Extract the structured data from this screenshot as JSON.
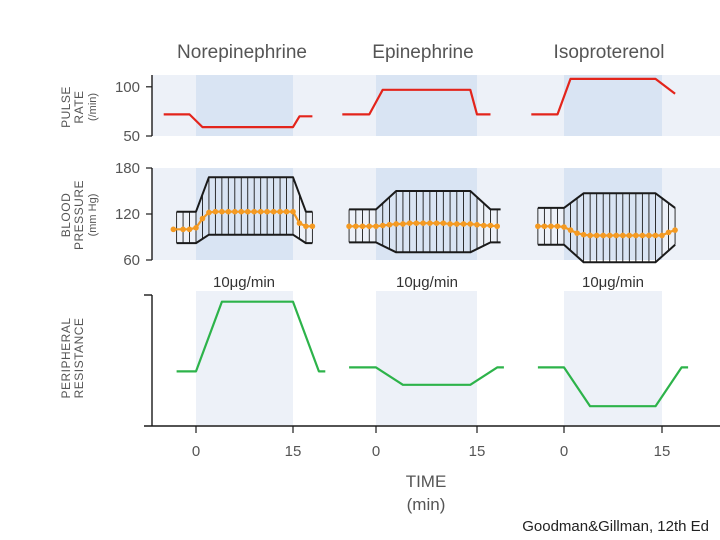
{
  "chart_data": {
    "type": "line",
    "columns": [
      {
        "title": "Norepinephrine",
        "dose": "10μg/min"
      },
      {
        "title": "Epinephrine",
        "dose": "10μg/min"
      },
      {
        "title": "Isoproterenol",
        "dose": "10μg/min"
      }
    ],
    "panels": {
      "pulse": {
        "ylabel": [
          "PULSE",
          "RATE"
        ],
        "yunits": "(/min)",
        "ticks": [
          {
            "v": 100,
            "label": "100"
          },
          {
            "v": 50,
            "label": "50"
          }
        ],
        "ylim": [
          50,
          112
        ],
        "series": [
          [
            [
              -5,
              72
            ],
            [
              -1,
              72
            ],
            [
              1,
              59
            ],
            [
              15,
              59
            ],
            [
              16,
              70
            ],
            [
              18,
              70
            ]
          ],
          [
            [
              -5,
              72
            ],
            [
              -1,
              72
            ],
            [
              1,
              97
            ],
            [
              14,
              97
            ],
            [
              15,
              72
            ],
            [
              17,
              72
            ]
          ],
          [
            [
              -5,
              72
            ],
            [
              -1,
              72
            ],
            [
              1,
              108
            ],
            [
              14,
              108
            ],
            [
              17,
              93
            ]
          ]
        ]
      },
      "bp": {
        "ylabel": [
          "BLOOD",
          "PRESSURE"
        ],
        "yunits": "(mm Hg)",
        "ticks": [
          {
            "v": 180,
            "label": "180"
          },
          {
            "v": 120,
            "label": "120"
          },
          {
            "v": 60,
            "label": "60"
          }
        ],
        "ylim": [
          60,
          180
        ],
        "systolic": [
          [
            [
              -3,
              123
            ],
            [
              0,
              123
            ],
            [
              2,
              168
            ],
            [
              15,
              168
            ],
            [
              17,
              123
            ],
            [
              18,
              123
            ]
          ],
          [
            [
              -4,
              126
            ],
            [
              0,
              126
            ],
            [
              3,
              150
            ],
            [
              14,
              150
            ],
            [
              17,
              126
            ],
            [
              18.5,
              126
            ]
          ],
          [
            [
              -4,
              128
            ],
            [
              0,
              128
            ],
            [
              3,
              147
            ],
            [
              14,
              147
            ],
            [
              17,
              128
            ]
          ]
        ],
        "diastolic": [
          [
            [
              -3,
              82
            ],
            [
              0,
              82
            ],
            [
              2,
              93
            ],
            [
              15,
              93
            ],
            [
              17,
              82
            ],
            [
              18,
              82
            ]
          ],
          [
            [
              -4,
              83
            ],
            [
              0,
              83
            ],
            [
              3,
              70
            ],
            [
              14,
              70
            ],
            [
              17,
              83
            ],
            [
              18.5,
              83
            ]
          ],
          [
            [
              -4,
              80
            ],
            [
              0,
              80
            ],
            [
              3,
              57
            ],
            [
              14,
              57
            ],
            [
              17,
              80
            ]
          ]
        ],
        "mean": [
          [
            [
              -3.5,
              100
            ],
            [
              -2,
              100
            ],
            [
              -1,
              100
            ],
            [
              0,
              102
            ],
            [
              1,
              114
            ],
            [
              2,
              122
            ],
            [
              3,
              123
            ],
            [
              4,
              123
            ],
            [
              5,
              123
            ],
            [
              6,
              123
            ],
            [
              7,
              123
            ],
            [
              8,
              123
            ],
            [
              9,
              123
            ],
            [
              10,
              123
            ],
            [
              11,
              123
            ],
            [
              12,
              123
            ],
            [
              13,
              123
            ],
            [
              14,
              123
            ],
            [
              15,
              123
            ],
            [
              16,
              108
            ],
            [
              17,
              104
            ],
            [
              18,
              104
            ]
          ],
          [
            [
              -4,
              104
            ],
            [
              -3,
              104
            ],
            [
              -2,
              104
            ],
            [
              -1,
              104
            ],
            [
              0,
              104
            ],
            [
              1,
              105
            ],
            [
              2,
              106
            ],
            [
              3,
              107
            ],
            [
              4,
              107
            ],
            [
              5,
              108
            ],
            [
              6,
              108
            ],
            [
              7,
              108
            ],
            [
              8,
              108
            ],
            [
              9,
              108
            ],
            [
              10,
              108
            ],
            [
              11,
              107
            ],
            [
              12,
              107
            ],
            [
              13,
              107
            ],
            [
              14,
              107
            ],
            [
              15,
              106
            ],
            [
              16,
              105
            ],
            [
              17,
              105
            ],
            [
              18,
              104
            ]
          ],
          [
            [
              -4,
              104
            ],
            [
              -3,
              104
            ],
            [
              -2,
              104
            ],
            [
              -1,
              104
            ],
            [
              0,
              103
            ],
            [
              1,
              99
            ],
            [
              2,
              95
            ],
            [
              3,
              93
            ],
            [
              4,
              92
            ],
            [
              5,
              92
            ],
            [
              6,
              92
            ],
            [
              7,
              92
            ],
            [
              8,
              92
            ],
            [
              9,
              92
            ],
            [
              10,
              92
            ],
            [
              11,
              92
            ],
            [
              12,
              92
            ],
            [
              13,
              92
            ],
            [
              14,
              92
            ],
            [
              15,
              92
            ],
            [
              16,
              96
            ],
            [
              17,
              99
            ]
          ]
        ]
      },
      "resistance": {
        "ylabel": [
          "PERIPHERAL",
          "RESISTANCE"
        ],
        "ylim": [
          0,
          100
        ],
        "series": [
          [
            [
              -3,
              40
            ],
            [
              0,
              40
            ],
            [
              4,
              92
            ],
            [
              15,
              92
            ],
            [
              19,
              40
            ],
            [
              20,
              40
            ]
          ],
          [
            [
              -4,
              43
            ],
            [
              0,
              43
            ],
            [
              4,
              30
            ],
            [
              14,
              30
            ],
            [
              18,
              43
            ],
            [
              19,
              43
            ]
          ],
          [
            [
              -4,
              43
            ],
            [
              0,
              43
            ],
            [
              4,
              14
            ],
            [
              14,
              14
            ],
            [
              18,
              43
            ],
            [
              19,
              43
            ]
          ]
        ]
      }
    },
    "xticks": [
      {
        "v": 0,
        "label": "0"
      },
      {
        "v": 15,
        "label": "15"
      }
    ],
    "xlabel": "TIME",
    "xunits": "(min)",
    "colors": {
      "pulse": "#e3241b",
      "bp_line": "#1a1a1a",
      "bp_mean": "#f49a22",
      "resistance": "#2db34a",
      "band": "#edf1f8",
      "infusion": "#d9e4f3",
      "axis": "#1a1a1a"
    }
  },
  "credit": "Goodman&Gillman, 12th Ed"
}
